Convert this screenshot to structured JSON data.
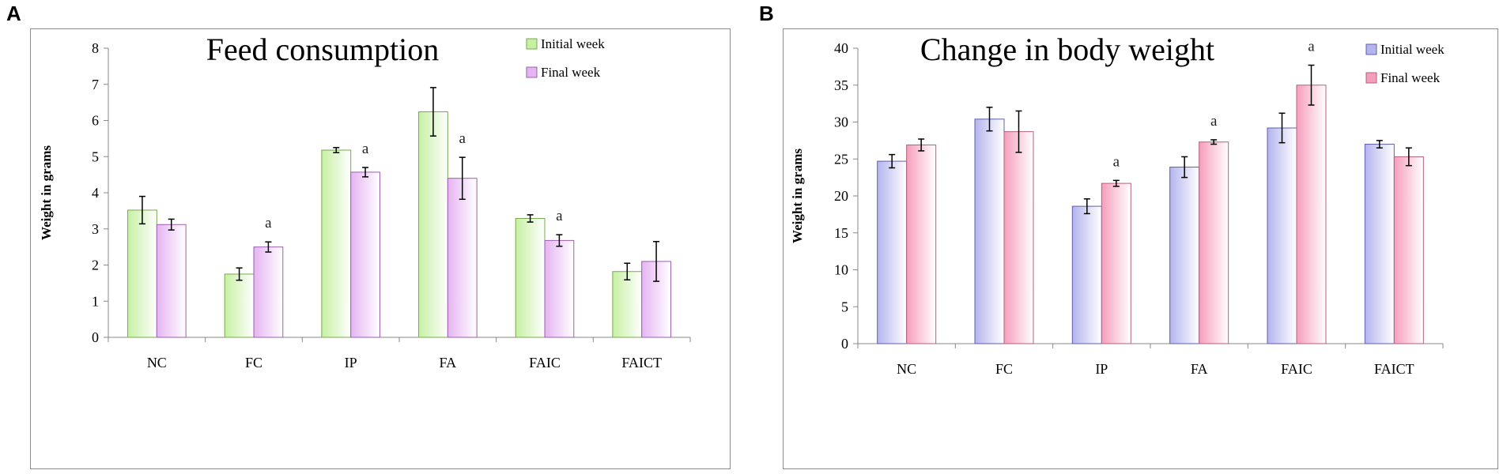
{
  "panels": [
    "A",
    "B"
  ],
  "chart_data": [
    {
      "type": "bar",
      "panel": "A",
      "title": "Feed consumption",
      "xlabel": "",
      "ylabel": "Weight in grams",
      "ylim": [
        0,
        8
      ],
      "yticks": [
        0,
        1,
        2,
        3,
        4,
        5,
        6,
        7,
        8
      ],
      "categories": [
        "NC",
        "FC",
        "IP",
        "FA",
        "FAIC",
        "FAICT"
      ],
      "legend_position": "top-right",
      "series": [
        {
          "name": "Initial week",
          "color": "#c6f0a2",
          "edge": "#7aa84f",
          "values": [
            3.52,
            1.75,
            5.18,
            6.24,
            3.29,
            1.82
          ],
          "errors": [
            0.38,
            0.17,
            0.07,
            0.67,
            0.1,
            0.23
          ]
        },
        {
          "name": "Final week",
          "color": "#e6b4f2",
          "edge": "#9a5fae",
          "values": [
            3.12,
            2.5,
            4.57,
            4.4,
            2.68,
            2.1
          ],
          "errors": [
            0.15,
            0.14,
            0.13,
            0.58,
            0.16,
            0.55
          ]
        }
      ],
      "annotations": [
        {
          "series": 1,
          "category": 1,
          "text": "a"
        },
        {
          "series": 1,
          "category": 2,
          "text": "a"
        },
        {
          "series": 1,
          "category": 3,
          "text": "a"
        },
        {
          "series": 1,
          "category": 4,
          "text": "a"
        }
      ]
    },
    {
      "type": "bar",
      "panel": "B",
      "title": "Change in body weight",
      "xlabel": "",
      "ylabel": "Weight in grams",
      "ylim": [
        0,
        40
      ],
      "yticks": [
        0,
        5,
        10,
        15,
        20,
        25,
        30,
        35,
        40
      ],
      "categories": [
        "NC",
        "FC",
        "IP",
        "FA",
        "FAIC",
        "FAICT"
      ],
      "legend_position": "top-right",
      "series": [
        {
          "name": "Initial week",
          "color": "#b4b4ee",
          "edge": "#5f5fae",
          "values": [
            24.7,
            30.4,
            18.6,
            23.9,
            29.2,
            27.0
          ],
          "errors": [
            0.9,
            1.6,
            1.0,
            1.4,
            2.0,
            0.5
          ]
        },
        {
          "name": "Final week",
          "color": "#f59ebc",
          "edge": "#b55f7e",
          "values": [
            26.9,
            28.7,
            21.7,
            27.3,
            35.0,
            25.3
          ],
          "errors": [
            0.8,
            2.8,
            0.4,
            0.3,
            2.7,
            1.2
          ]
        }
      ],
      "annotations": [
        {
          "series": 1,
          "category": 2,
          "text": "a"
        },
        {
          "series": 1,
          "category": 3,
          "text": "a"
        },
        {
          "series": 1,
          "category": 4,
          "text": "a"
        }
      ]
    }
  ]
}
